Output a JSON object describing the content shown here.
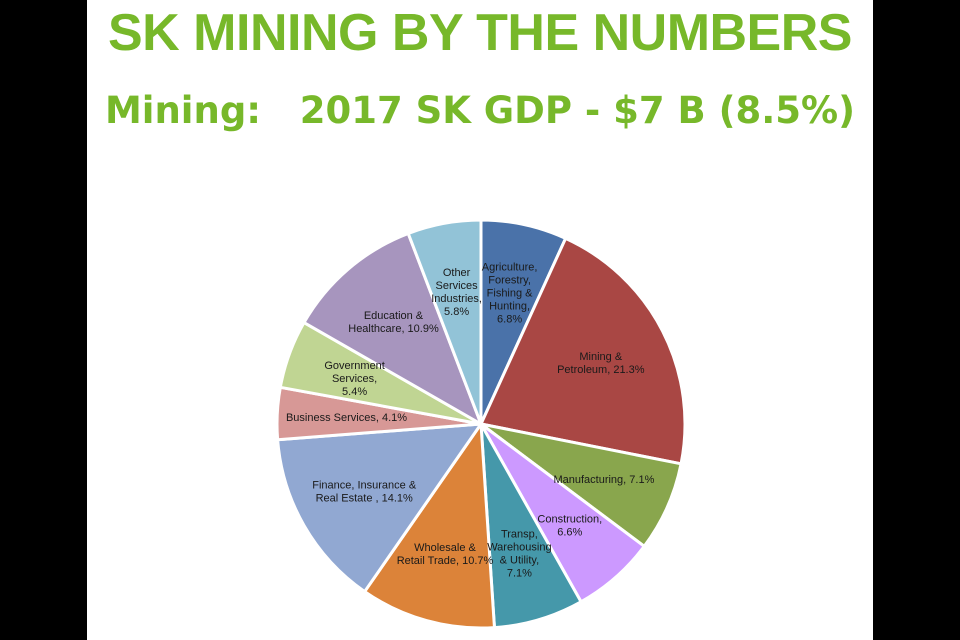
{
  "title": "SK MINING BY THE NUMBERS",
  "subtitle": "Mining:   2017 SK GDP - $7 B (8.5%)",
  "colors": {
    "heading": "#77b82a",
    "slice_border": "#ffffff",
    "page_frame": "#000000"
  },
  "chart_data": {
    "type": "pie",
    "title": "",
    "start": "12 o'clock, clockwise",
    "slices": [
      {
        "label": "Agriculture, Forestry, Fishing & Hunting",
        "display": [
          "Agriculture,",
          "Forestry,",
          "Fishing &",
          "Hunting,",
          "6.8%"
        ],
        "value": 6.8,
        "color": "#4a72a9"
      },
      {
        "label": "Mining & Petroleum",
        "display": [
          "Mining &",
          "Petroleum, 21.3%"
        ],
        "value": 21.3,
        "color": "#a94744"
      },
      {
        "label": "Manufacturing",
        "display": [
          "Manufacturing, 7.1%"
        ],
        "value": 7.1,
        "color": "#89a64d"
      },
      {
        "label": "Construction",
        "display": [
          "Construction,",
          "6.6%"
        ],
        "value": 6.6,
        "color": "#cc99ff"
      },
      {
        "label": "Transp, Warehousing & Utility",
        "display": [
          "Transp,",
          "Warehousing",
          "& Utility,",
          "7.1%"
        ],
        "value": 7.1,
        "color": "#4598aa"
      },
      {
        "label": "Wholesale & Retail Trade",
        "display": [
          "Wholesale &",
          "Retail Trade, 10.7%"
        ],
        "value": 10.7,
        "color": "#dc8339"
      },
      {
        "label": "Finance, Insurance & Real Estate",
        "display": [
          "Finance, Insurance &",
          "Real Estate , 14.1%"
        ],
        "value": 14.1,
        "color": "#91a8d2"
      },
      {
        "label": "Business Services",
        "display": [
          "Business Services, 4.1%"
        ],
        "value": 4.1,
        "color": "#d79896"
      },
      {
        "label": "Government Services",
        "display": [
          "Government",
          "Services,",
          "5.4%"
        ],
        "value": 5.4,
        "color": "#c0d593"
      },
      {
        "label": "Education & Healthcare",
        "display": [
          "Education &",
          "Healthcare, 10.9%"
        ],
        "value": 10.9,
        "color": "#a795be"
      },
      {
        "label": "Other Services Industries",
        "display": [
          "Other",
          "Services",
          "Industries,",
          "5.8%"
        ],
        "value": 5.8,
        "color": "#92c3d7"
      }
    ]
  }
}
